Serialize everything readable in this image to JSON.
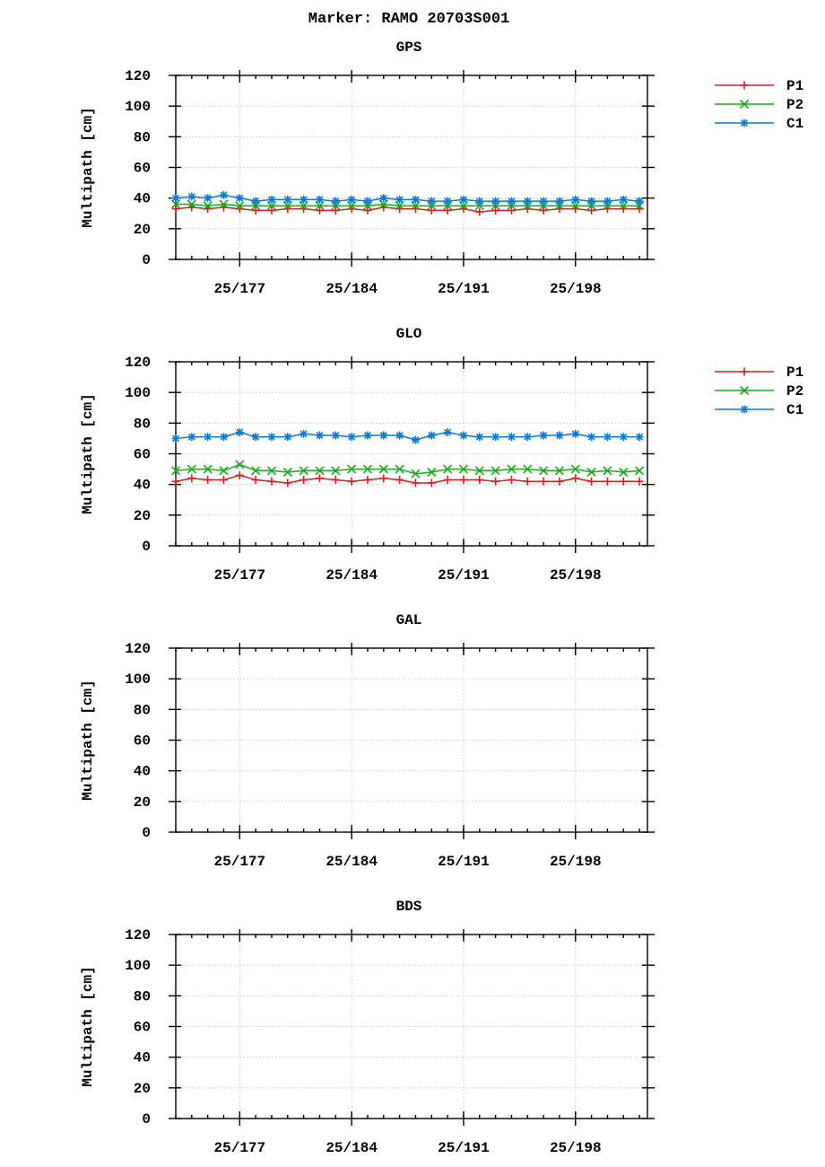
{
  "title": "Marker: RAMO 20703S001",
  "chart_data": [
    {
      "type": "line",
      "title": "GPS",
      "ylabel": "Multipath [cm]",
      "xlabel": "",
      "ylim": [
        0,
        120
      ],
      "yticks": [
        0,
        20,
        40,
        60,
        80,
        100,
        120
      ],
      "xlim": [
        173,
        202.5
      ],
      "xticks": [
        {
          "day": 177,
          "label": "25/177"
        },
        {
          "day": 184,
          "label": "25/184"
        },
        {
          "day": 191,
          "label": "25/191"
        },
        {
          "day": 198,
          "label": "25/198"
        }
      ],
      "grid": true,
      "legend": "outside-top-right",
      "series": [
        {
          "name": "P1",
          "color": "#e41a1c",
          "marker": "plus",
          "x": [
            173,
            174,
            175,
            176,
            177,
            178,
            179,
            180,
            181,
            182,
            183,
            184,
            185,
            186,
            187,
            188,
            189,
            190,
            191,
            192,
            193,
            194,
            195,
            196,
            197,
            198,
            199,
            200,
            201,
            202
          ],
          "values": [
            33,
            34,
            33,
            34,
            33,
            32,
            32,
            33,
            33,
            32,
            32,
            33,
            32,
            34,
            33,
            33,
            32,
            32,
            33,
            31,
            32,
            32,
            33,
            32,
            33,
            33,
            32,
            33,
            33,
            33
          ]
        },
        {
          "name": "P2",
          "color": "#1aaa1a",
          "marker": "x",
          "x": [
            173,
            174,
            175,
            176,
            177,
            178,
            179,
            180,
            181,
            182,
            183,
            184,
            185,
            186,
            187,
            188,
            189,
            190,
            191,
            192,
            193,
            194,
            195,
            196,
            197,
            198,
            199,
            200,
            201,
            202
          ],
          "values": [
            36,
            36,
            35,
            36,
            35,
            35,
            35,
            35,
            35,
            35,
            35,
            35,
            35,
            36,
            35,
            35,
            35,
            35,
            35,
            35,
            35,
            35,
            35,
            35,
            35,
            35,
            35,
            35,
            35,
            35
          ]
        },
        {
          "name": "C1",
          "color": "#0a7ad8",
          "marker": "star",
          "x": [
            173,
            174,
            175,
            176,
            177,
            178,
            179,
            180,
            181,
            182,
            183,
            184,
            185,
            186,
            187,
            188,
            189,
            190,
            191,
            192,
            193,
            194,
            195,
            196,
            197,
            198,
            199,
            200,
            201,
            202
          ],
          "values": [
            40,
            41,
            40,
            42,
            40,
            38,
            39,
            39,
            39,
            39,
            38,
            39,
            38,
            40,
            39,
            39,
            38,
            38,
            39,
            38,
            38,
            38,
            38,
            38,
            38,
            39,
            38,
            38,
            39,
            38
          ]
        }
      ]
    },
    {
      "type": "line",
      "title": "GLO",
      "ylabel": "Multipath [cm]",
      "xlabel": "",
      "ylim": [
        0,
        120
      ],
      "yticks": [
        0,
        20,
        40,
        60,
        80,
        100,
        120
      ],
      "xlim": [
        173,
        202.5
      ],
      "xticks": [
        {
          "day": 177,
          "label": "25/177"
        },
        {
          "day": 184,
          "label": "25/184"
        },
        {
          "day": 191,
          "label": "25/191"
        },
        {
          "day": 198,
          "label": "25/198"
        }
      ],
      "grid": true,
      "legend": "outside-top-right",
      "series": [
        {
          "name": "P1",
          "color": "#e41a1c",
          "marker": "plus",
          "x": [
            173,
            174,
            175,
            176,
            177,
            178,
            179,
            180,
            181,
            182,
            183,
            184,
            185,
            186,
            187,
            188,
            189,
            190,
            191,
            192,
            193,
            194,
            195,
            196,
            197,
            198,
            199,
            200,
            201,
            202
          ],
          "values": [
            42,
            44,
            43,
            43,
            46,
            43,
            42,
            41,
            43,
            44,
            43,
            42,
            43,
            44,
            43,
            41,
            41,
            43,
            43,
            43,
            42,
            43,
            42,
            42,
            42,
            44,
            42,
            42,
            42,
            42
          ]
        },
        {
          "name": "P2",
          "color": "#1aaa1a",
          "marker": "x",
          "x": [
            173,
            174,
            175,
            176,
            177,
            178,
            179,
            180,
            181,
            182,
            183,
            184,
            185,
            186,
            187,
            188,
            189,
            190,
            191,
            192,
            193,
            194,
            195,
            196,
            197,
            198,
            199,
            200,
            201,
            202
          ],
          "values": [
            49,
            50,
            50,
            49,
            53,
            49,
            49,
            48,
            49,
            49,
            49,
            50,
            50,
            50,
            50,
            47,
            48,
            50,
            50,
            49,
            49,
            50,
            50,
            49,
            49,
            50,
            48,
            49,
            48,
            49
          ]
        },
        {
          "name": "C1",
          "color": "#0a7ad8",
          "marker": "star",
          "x": [
            173,
            174,
            175,
            176,
            177,
            178,
            179,
            180,
            181,
            182,
            183,
            184,
            185,
            186,
            187,
            188,
            189,
            190,
            191,
            192,
            193,
            194,
            195,
            196,
            197,
            198,
            199,
            200,
            201,
            202
          ],
          "values": [
            70,
            71,
            71,
            71,
            74,
            71,
            71,
            71,
            73,
            72,
            72,
            71,
            72,
            72,
            72,
            69,
            72,
            74,
            72,
            71,
            71,
            71,
            71,
            72,
            72,
            73,
            71,
            71,
            71,
            71
          ]
        }
      ]
    },
    {
      "type": "line",
      "title": "GAL",
      "ylabel": "Multipath [cm]",
      "xlabel": "",
      "ylim": [
        0,
        120
      ],
      "yticks": [
        0,
        20,
        40,
        60,
        80,
        100,
        120
      ],
      "xlim": [
        173,
        202.5
      ],
      "xticks": [
        {
          "day": 177,
          "label": "25/177"
        },
        {
          "day": 184,
          "label": "25/184"
        },
        {
          "day": 191,
          "label": "25/191"
        },
        {
          "day": 198,
          "label": "25/198"
        }
      ],
      "grid": true,
      "legend": "none",
      "series": []
    },
    {
      "type": "line",
      "title": "BDS",
      "ylabel": "Multipath [cm]",
      "xlabel": "",
      "ylim": [
        0,
        120
      ],
      "yticks": [
        0,
        20,
        40,
        60,
        80,
        100,
        120
      ],
      "xlim": [
        173,
        202.5
      ],
      "xticks": [
        {
          "day": 177,
          "label": "25/177"
        },
        {
          "day": 184,
          "label": "25/184"
        },
        {
          "day": 191,
          "label": "25/191"
        },
        {
          "day": 198,
          "label": "25/198"
        }
      ],
      "grid": true,
      "legend": "none",
      "series": []
    }
  ]
}
